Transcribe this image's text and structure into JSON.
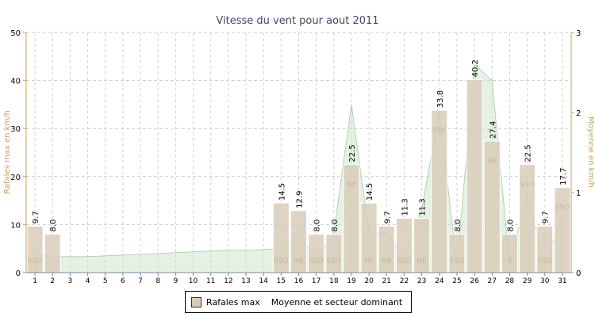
{
  "chart_data": {
    "type": "bar",
    "title": "Vitesse du vent pour aout 2011",
    "ylabel": "Rafales max en km/h",
    "y2label": "Moyenne en km/h",
    "ylim": [
      0,
      50
    ],
    "y2lim": [
      0,
      3
    ],
    "yticks": [
      "0",
      "10",
      "20",
      "30",
      "40",
      "50"
    ],
    "y2ticks": [
      "0",
      "1",
      "2",
      "3"
    ],
    "grid": true,
    "legend_position": "bottom",
    "categories": [
      "1",
      "2",
      "3",
      "4",
      "5",
      "6",
      "7",
      "8",
      "9",
      "10",
      "11",
      "12",
      "13",
      "14",
      "15",
      "16",
      "17",
      "18",
      "19",
      "20",
      "21",
      "22",
      "23",
      "24",
      "25",
      "26",
      "27",
      "28",
      "29",
      "30",
      "31"
    ],
    "series": [
      {
        "name": "Rafales max",
        "type": "bar",
        "color": "#d9ccba",
        "values": [
          9.7,
          8.0,
          null,
          null,
          null,
          null,
          null,
          null,
          null,
          null,
          null,
          null,
          null,
          null,
          14.5,
          12.9,
          8.0,
          8.0,
          22.5,
          14.5,
          9.7,
          11.3,
          11.3,
          33.8,
          8.0,
          40.2,
          27.4,
          8.0,
          22.5,
          9.7,
          17.7
        ],
        "labels": [
          "9.7",
          "8.0",
          "",
          "",
          "",
          "",
          "",
          "",
          "",
          "",
          "",
          "",
          "",
          "",
          "14.5",
          "12.9",
          "8.0",
          "8.0",
          "22.5",
          "14.5",
          "9.7",
          "11.3",
          "11.3",
          "33.8",
          "8.0",
          "40.2",
          "27.4",
          "8.0",
          "22.5",
          "9.7",
          "17.7"
        ]
      },
      {
        "name": "Moyenne et secteur dominant",
        "type": "area",
        "axis": "right",
        "color": "#c5e0c5",
        "values": [
          0.25,
          0.2,
          0.2,
          0.2,
          0.21,
          0.22,
          0.23,
          0.24,
          0.25,
          0.26,
          0.27,
          0.28,
          0.28,
          0.29,
          0.3,
          0.5,
          0.15,
          0.5,
          2.1,
          0.5,
          0.5,
          0.2,
          0.8,
          2.0,
          0.1,
          2.6,
          2.4,
          0.1,
          1.0,
          0.1,
          0.7
        ],
        "sector_labels": [
          "SSO",
          "",
          "",
          "",
          "",
          "",
          "",
          "",
          "",
          "",
          "",
          "",
          "",
          "",
          "SSO",
          "NE",
          "SSO",
          "SSO",
          "NE",
          "NE",
          "NE",
          "SSO",
          "NE",
          "ESE",
          "SSO",
          "",
          "NE",
          "S",
          "SSO",
          "SSO",
          "SSO"
        ]
      }
    ]
  }
}
